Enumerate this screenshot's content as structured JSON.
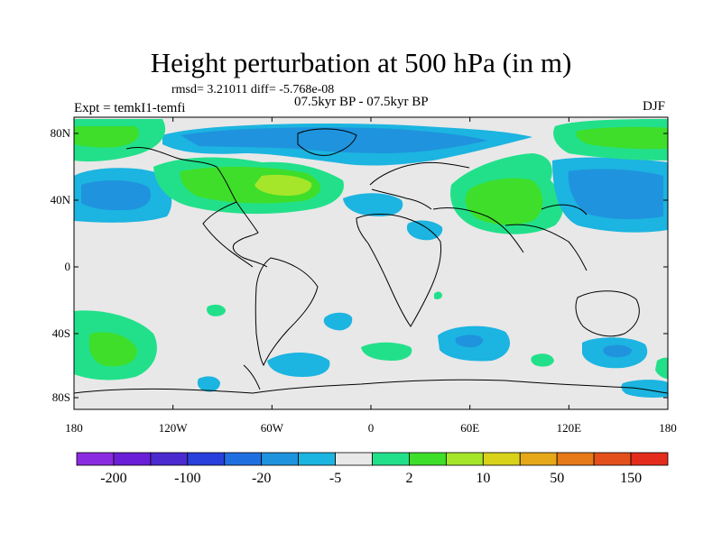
{
  "title": "Height perturbation at 500 hPa (in m)",
  "stats": "rmsd= 3.21011 diff= -5.768e-08",
  "experiment": "Expt = temkI1-temfi",
  "period": "07.5kyr BP - 07.5kyr BP",
  "season": "DJF",
  "lat_ticks": [
    "80N",
    "40N",
    "0",
    "40S",
    "80S"
  ],
  "lon_ticks": [
    "180",
    "120W",
    "60W",
    "0",
    "60E",
    "120E",
    "180"
  ],
  "colorbar": {
    "colors": [
      "#8a2be2",
      "#6a1fd6",
      "#4b2ad0",
      "#2a40dc",
      "#1f6fe0",
      "#1f93dd",
      "#1cb4e0",
      "#e8e8e8",
      "#22e08a",
      "#3ede2a",
      "#a6e62a",
      "#d8d21a",
      "#e6a818",
      "#e67a18",
      "#e4501c",
      "#e42c1c"
    ],
    "labels": [
      "-200",
      "-100",
      "-20",
      "-5",
      "2",
      "10",
      "50",
      "150"
    ]
  },
  "map_fill_colors": {
    "background": "#e8e8e8",
    "pos_light": "#22e08a",
    "pos_mid": "#3ede2a",
    "pos_strong": "#a6e62a",
    "neg_light": "#1cb4e0",
    "neg_mid": "#1f93dd",
    "neg_strong": "#1f6fe0"
  }
}
